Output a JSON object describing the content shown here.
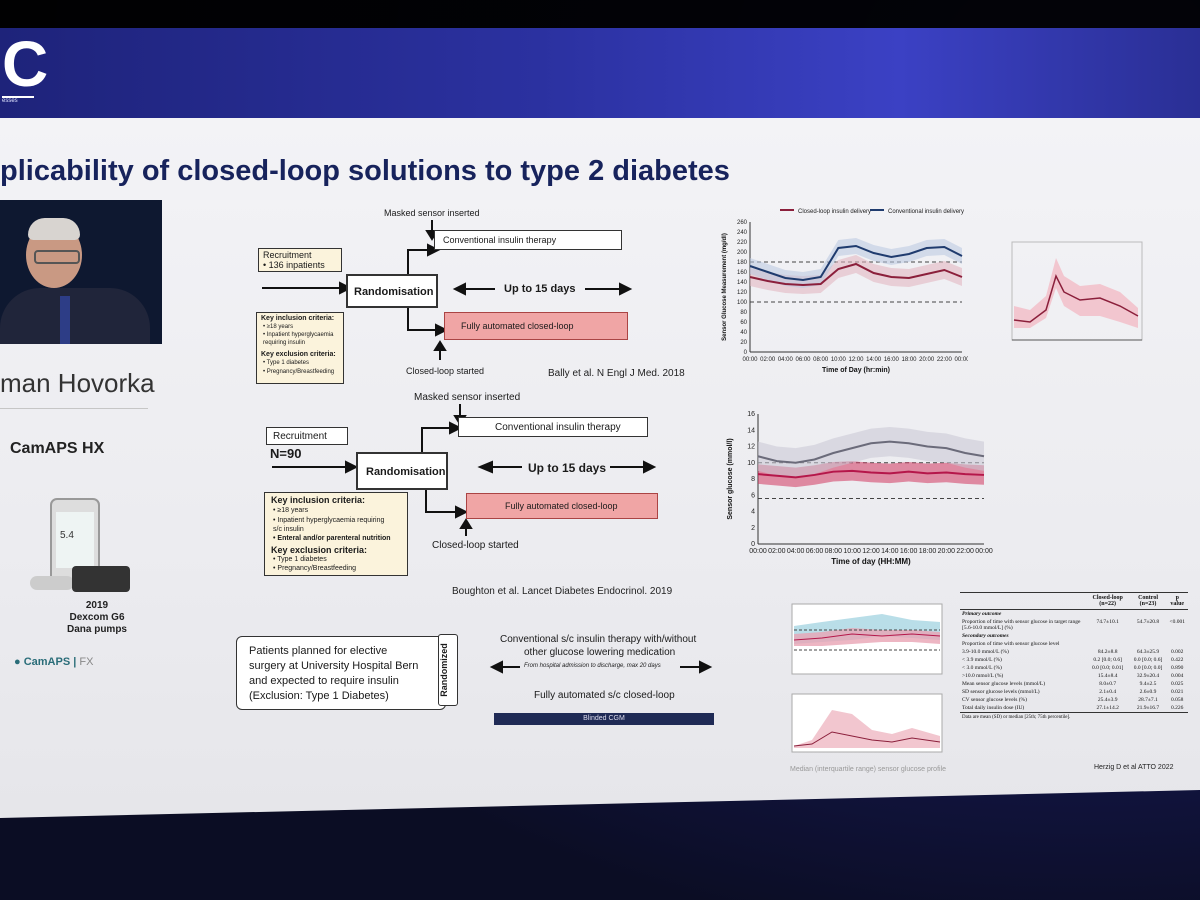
{
  "header": {
    "logo_letter": "C",
    "logo_sub": "esses"
  },
  "slide": {
    "title": "plicability of closed-loop solutions to type 2 diabetes",
    "speaker_name": "man Hovorka",
    "product": "CamAPS HX",
    "device_caption": [
      "2019",
      "Dexcom G6",
      "Dana pumps"
    ],
    "phone_value": "5.4",
    "bottom_logo": "CamAPS",
    "bottom_logo_sub": "FX"
  },
  "study1": {
    "masked": "Masked sensor inserted",
    "recruitment": "Recruitment",
    "inpatients": "• 136 inpatients",
    "randomisation": "Randomisation",
    "conventional": "Conventional insulin therapy",
    "up_to": "Up to 15 days",
    "fully": "Fully automated closed-loop",
    "closed_started": "Closed-loop started",
    "inclusion_title": "Key inclusion criteria:",
    "inclusion": [
      "• ≥18 years",
      "• Inpatient hyperglycaemia",
      "  requiring insulin"
    ],
    "exclusion_title": "Key exclusion criteria:",
    "exclusion": [
      "• Type 1 diabetes",
      "• Pregnancy/Breastfeeding"
    ],
    "citation": "Bally et al. N Engl J Med. 2018"
  },
  "study2": {
    "masked": "Masked sensor inserted",
    "recruitment": "Recruitment",
    "n": "N=90",
    "randomisation": "Randomisation",
    "conventional": "Conventional insulin therapy",
    "up_to": "Up to 15 days",
    "fully": "Fully automated closed-loop",
    "closed_started": "Closed-loop started",
    "inclusion_title": "Key inclusion criteria:",
    "inclusion": [
      "• ≥18 years",
      "• Inpatient hyperglycaemia requiring",
      "  s/c insulin",
      "• Enteral and/or parenteral nutrition"
    ],
    "exclusion_title": "Key exclusion criteria:",
    "exclusion": [
      "• Type 1 diabetes",
      "• Pregnancy/Breastfeeding"
    ],
    "citation": "Boughton et al. Lancet Diabetes Endocrinol. 2019"
  },
  "study3": {
    "patients": [
      "Patients planned for elective",
      "surgery at University Hospital Bern",
      "and expected to require insulin",
      "(Exclusion: Type 1 Diabetes)"
    ],
    "randomized": "Randomized",
    "conventional": [
      "Conventional s/c insulin therapy with/without",
      "other glucose lowering medication"
    ],
    "period": "From hospital admission to discharge, max 20 days",
    "fully": "Fully automated s/c closed-loop",
    "blinded": "Blinded CGM",
    "caption": "Median (interquartile range) sensor glucose profile",
    "citation": "Herzig D et al ATTO 2022"
  },
  "chart_data": [
    {
      "type": "line",
      "title": "",
      "xlabel": "Time of Day (hr:min)",
      "ylabel": "Sensor Glucose Measurement (mg/dl)",
      "ylim": [
        0,
        260
      ],
      "yticks": [
        "0",
        "20",
        "40",
        "60",
        "80",
        "100",
        "120",
        "140",
        "160",
        "180",
        "200",
        "220",
        "240",
        "260"
      ],
      "x": [
        "00:00",
        "02:00",
        "04:00",
        "06:00",
        "08:00",
        "10:00",
        "12:00",
        "14:00",
        "16:00",
        "18:00",
        "20:00",
        "22:00",
        "00:00"
      ],
      "series": [
        {
          "name": "Closed-loop insulin delivery",
          "color": "#8b1f3b",
          "values": [
            150,
            142,
            136,
            134,
            136,
            166,
            176,
            158,
            150,
            148,
            156,
            164,
            150
          ]
        },
        {
          "name": "Conventional insulin delivery",
          "color": "#1f3b6e",
          "values": [
            172,
            160,
            148,
            144,
            150,
            208,
            212,
            198,
            190,
            196,
            208,
            210,
            192
          ]
        }
      ],
      "reference_lines": [
        100,
        180
      ]
    },
    {
      "type": "line",
      "title": "",
      "xlabel": "Time of day (HH:MM)",
      "ylabel": "Sensor glucose (mmol/l)",
      "ylim": [
        0,
        16
      ],
      "yticks": [
        "0",
        "2",
        "4",
        "6",
        "8",
        "10",
        "12",
        "14",
        "16"
      ],
      "x": [
        "00:00",
        "02:00",
        "04:00",
        "06:00",
        "08:00",
        "10:00",
        "12:00",
        "14:00",
        "16:00",
        "18:00",
        "20:00",
        "22:00",
        "00:00"
      ],
      "series": [
        {
          "name": "",
          "color": "#b5174a",
          "values": [
            8.6,
            8.4,
            8.2,
            8.5,
            8.9,
            9.0,
            8.8,
            8.7,
            8.9,
            8.7,
            8.8,
            8.6,
            8.5
          ]
        },
        {
          "name": "",
          "color": "#6b6b7a",
          "values": [
            10.8,
            10.2,
            10.0,
            10.4,
            11.2,
            11.8,
            12.4,
            12.6,
            12.4,
            12.0,
            11.8,
            11.2,
            10.8
          ]
        }
      ],
      "reference_lines": [
        5.6,
        10.0
      ]
    }
  ],
  "table": {
    "headers": [
      "",
      "Closed-loop (n=22)",
      "Control (n=23)",
      "p value"
    ],
    "rows": [
      [
        "Primary outcome",
        "",
        "",
        ""
      ],
      [
        "Proportion of time with sensor glucose in target range [5.6-10.0 mmol/L] (%)",
        "74.7±10.1",
        "54.7±20.8",
        "<0.001"
      ],
      [
        "Secondary outcomes",
        "",
        "",
        ""
      ],
      [
        "Proportion of time with sensor glucose level",
        "",
        "",
        ""
      ],
      [
        "3.9-10.0 mmol/L (%)",
        "84.2±8.8",
        "64.3±25.9",
        "0.002"
      ],
      [
        "< 3.9 mmol/L (%)",
        "0.2 [0.0; 0.6]",
        "0.0 [0.0; 0.6]",
        "0.422"
      ],
      [
        "< 3.0 mmol/L (%)",
        "0.0 [0.0; 0.01]",
        "0.0 [0.0; 0.0]",
        "0.890"
      ],
      [
        ">10.0 mmol/L (%)",
        "15.4±8.4",
        "32.9±20.4",
        "0.004"
      ],
      [
        "Mean sensor glucose levels (mmol/L)",
        "8.0±0.7",
        "9.4±2.5",
        "0.025"
      ],
      [
        "SD sensor glucose levels (mmol/L)",
        "2.1±0.4",
        "2.6±0.9",
        "0.021"
      ],
      [
        "CV sensor glucose levels (%)",
        "25.4±3.9",
        "28.7±7.1",
        "0.058"
      ],
      [
        "Total daily insulin dose (IU)",
        "27.1±14.2",
        "21.9±16.7",
        "0.226"
      ]
    ],
    "footnote": "Data are mean (SD) or median [25th; 75th percentile]."
  }
}
